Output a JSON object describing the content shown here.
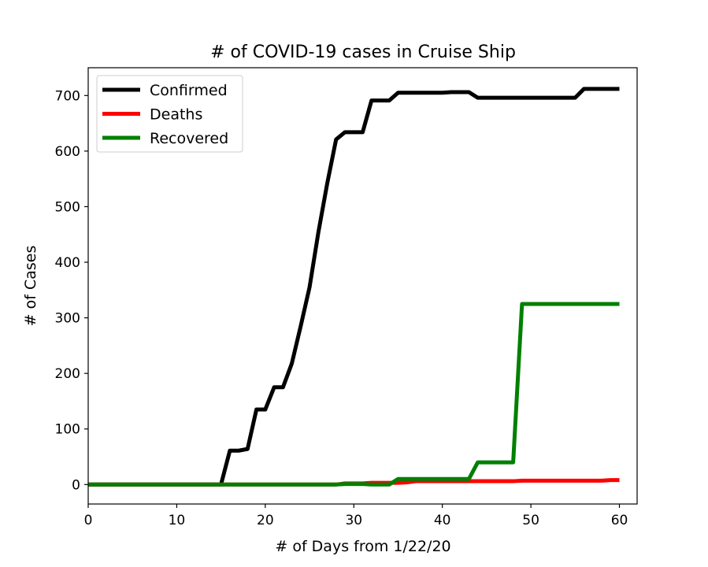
{
  "chart_data": {
    "type": "line",
    "title": "# of COVID-19 cases in Cruise Ship",
    "xlabel": "# of Days from 1/22/20",
    "ylabel": "# of Cases",
    "xlim": [
      0,
      62
    ],
    "ylim": [
      -35,
      750
    ],
    "xticks": [
      0,
      10,
      20,
      30,
      40,
      50,
      60
    ],
    "yticks": [
      0,
      100,
      200,
      300,
      400,
      500,
      600,
      700
    ],
    "legend_position": "top-left",
    "grid": false,
    "x": [
      0,
      1,
      2,
      3,
      4,
      5,
      6,
      7,
      8,
      9,
      10,
      11,
      12,
      13,
      14,
      15,
      16,
      17,
      18,
      19,
      20,
      21,
      22,
      23,
      24,
      25,
      26,
      27,
      28,
      29,
      30,
      31,
      32,
      33,
      34,
      35,
      36,
      37,
      38,
      39,
      40,
      41,
      42,
      43,
      44,
      45,
      46,
      47,
      48,
      49,
      50,
      51,
      52,
      53,
      54,
      55,
      56,
      57,
      58,
      59,
      60
    ],
    "series": [
      {
        "name": "Confirmed",
        "color": "#000000",
        "values": [
          0,
          0,
          0,
          0,
          0,
          0,
          0,
          0,
          0,
          0,
          0,
          0,
          0,
          0,
          0,
          0,
          61,
          61,
          64,
          135,
          135,
          175,
          175,
          218,
          285,
          355,
          454,
          542,
          621,
          634,
          634,
          634,
          691,
          691,
          691,
          705,
          705,
          705,
          705,
          705,
          705,
          706,
          706,
          706,
          696,
          696,
          696,
          696,
          696,
          696,
          696,
          696,
          696,
          696,
          696,
          696,
          712,
          712,
          712,
          712,
          712
        ]
      },
      {
        "name": "Deaths",
        "color": "#ff0000",
        "values": [
          0,
          0,
          0,
          0,
          0,
          0,
          0,
          0,
          0,
          0,
          0,
          0,
          0,
          0,
          0,
          0,
          0,
          0,
          0,
          0,
          0,
          0,
          0,
          0,
          0,
          0,
          0,
          0,
          0,
          2,
          2,
          2,
          3,
          3,
          3,
          3,
          4,
          6,
          6,
          6,
          6,
          6,
          6,
          6,
          6,
          6,
          6,
          6,
          6,
          7,
          7,
          7,
          7,
          7,
          7,
          7,
          7,
          7,
          7,
          8,
          8
        ]
      },
      {
        "name": "Recovered",
        "color": "#008000",
        "values": [
          0,
          0,
          0,
          0,
          0,
          0,
          0,
          0,
          0,
          0,
          0,
          0,
          0,
          0,
          0,
          0,
          0,
          0,
          0,
          0,
          0,
          0,
          0,
          0,
          0,
          0,
          0,
          0,
          0,
          1,
          1,
          1,
          0,
          0,
          0,
          10,
          10,
          10,
          10,
          10,
          10,
          10,
          10,
          10,
          40,
          40,
          40,
          40,
          40,
          325,
          325,
          325,
          325,
          325,
          325,
          325,
          325,
          325,
          325,
          325,
          325
        ]
      }
    ]
  }
}
